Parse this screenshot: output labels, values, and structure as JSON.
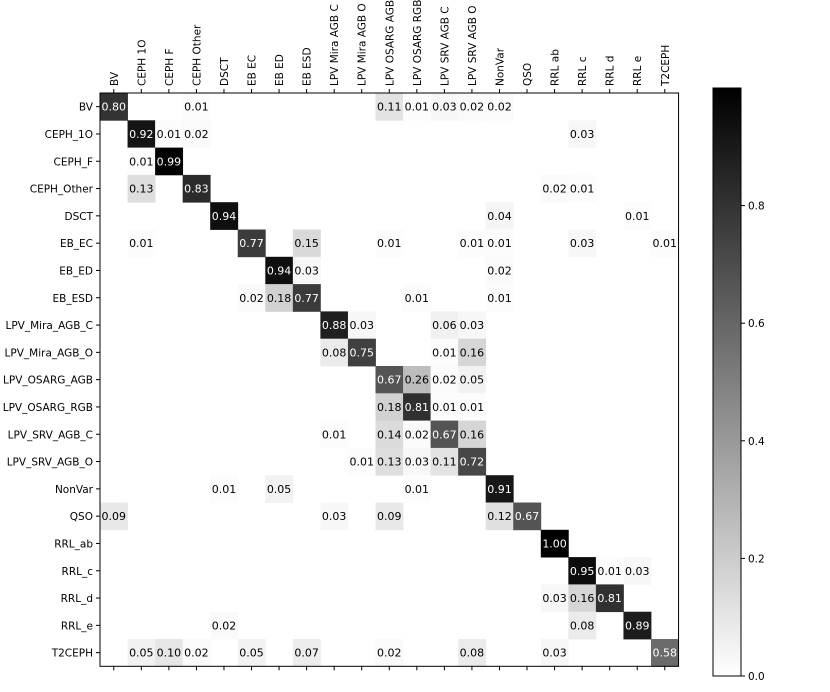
{
  "chart_data": {
    "type": "heatmap",
    "title": "",
    "xlabel": "",
    "ylabel": "",
    "x_tick_labels": [
      "BV",
      "CEPH 1O",
      "CEPH F",
      "CEPH Other",
      "DSCT",
      "EB EC",
      "EB ED",
      "EB ESD",
      "LPV Mira AGB C",
      "LPV Mira AGB O",
      "LPV OSARG AGB",
      "LPV OSARG RGB",
      "LPV SRV AGB C",
      "LPV SRV AGB O",
      "NonVar",
      "QSO",
      "RRL ab",
      "RRL c",
      "RRL d",
      "RRL e",
      "T2CEPH"
    ],
    "y_tick_labels": [
      "BV",
      "CEPH_1O",
      "CEPH_F",
      "CEPH_Other",
      "DSCT",
      "EB_EC",
      "EB_ED",
      "EB_ESD",
      "LPV_Mira_AGB_C",
      "LPV_Mira_AGB_O",
      "LPV_OSARG_AGB",
      "LPV_OSARG_RGB",
      "LPV_SRV_AGB_C",
      "LPV_SRV_AGB_O",
      "NonVar",
      "QSO",
      "RRL_ab",
      "RRL_c",
      "RRL_d",
      "RRL_e",
      "T2CEPH"
    ],
    "colormap": "Greys",
    "colorbar": {
      "range": [
        0.0,
        1.0
      ],
      "ticks": [
        "0.0",
        "0.2",
        "0.4",
        "0.6",
        "0.8"
      ]
    },
    "cells": [
      {
        "r": 0,
        "c": 0,
        "v": 0.8,
        "label": "0.80"
      },
      {
        "r": 0,
        "c": 3,
        "v": 0.01,
        "label": "0.01"
      },
      {
        "r": 0,
        "c": 10,
        "v": 0.11,
        "label": "0.11"
      },
      {
        "r": 0,
        "c": 11,
        "v": 0.01,
        "label": "0.01"
      },
      {
        "r": 0,
        "c": 12,
        "v": 0.03,
        "label": "0.03"
      },
      {
        "r": 0,
        "c": 13,
        "v": 0.02,
        "label": "0.02"
      },
      {
        "r": 0,
        "c": 14,
        "v": 0.02,
        "label": "0.02"
      },
      {
        "r": 1,
        "c": 1,
        "v": 0.92,
        "label": "0.92"
      },
      {
        "r": 1,
        "c": 2,
        "v": 0.01,
        "label": "0.01"
      },
      {
        "r": 1,
        "c": 3,
        "v": 0.02,
        "label": "0.02"
      },
      {
        "r": 1,
        "c": 17,
        "v": 0.03,
        "label": "0.03"
      },
      {
        "r": 2,
        "c": 1,
        "v": 0.01,
        "label": "0.01"
      },
      {
        "r": 2,
        "c": 2,
        "v": 0.99,
        "label": "0.99"
      },
      {
        "r": 3,
        "c": 1,
        "v": 0.13,
        "label": "0.13"
      },
      {
        "r": 3,
        "c": 3,
        "v": 0.83,
        "label": "0.83"
      },
      {
        "r": 3,
        "c": 16,
        "v": 0.02,
        "label": "0.02"
      },
      {
        "r": 3,
        "c": 17,
        "v": 0.01,
        "label": "0.01"
      },
      {
        "r": 4,
        "c": 4,
        "v": 0.94,
        "label": "0.94"
      },
      {
        "r": 4,
        "c": 14,
        "v": 0.04,
        "label": "0.04"
      },
      {
        "r": 4,
        "c": 19,
        "v": 0.01,
        "label": "0.01"
      },
      {
        "r": 5,
        "c": 1,
        "v": 0.01,
        "label": "0.01"
      },
      {
        "r": 5,
        "c": 5,
        "v": 0.77,
        "label": "0.77"
      },
      {
        "r": 5,
        "c": 7,
        "v": 0.15,
        "label": "0.15"
      },
      {
        "r": 5,
        "c": 10,
        "v": 0.01,
        "label": "0.01"
      },
      {
        "r": 5,
        "c": 13,
        "v": 0.01,
        "label": "0.01"
      },
      {
        "r": 5,
        "c": 14,
        "v": 0.01,
        "label": "0.01"
      },
      {
        "r": 5,
        "c": 17,
        "v": 0.03,
        "label": "0.03"
      },
      {
        "r": 5,
        "c": 20,
        "v": 0.01,
        "label": "0.01"
      },
      {
        "r": 6,
        "c": 6,
        "v": 0.94,
        "label": "0.94"
      },
      {
        "r": 6,
        "c": 7,
        "v": 0.03,
        "label": "0.03"
      },
      {
        "r": 6,
        "c": 14,
        "v": 0.02,
        "label": "0.02"
      },
      {
        "r": 7,
        "c": 5,
        "v": 0.02,
        "label": "0.02"
      },
      {
        "r": 7,
        "c": 6,
        "v": 0.18,
        "label": "0.18"
      },
      {
        "r": 7,
        "c": 7,
        "v": 0.77,
        "label": "0.77"
      },
      {
        "r": 7,
        "c": 11,
        "v": 0.01,
        "label": "0.01"
      },
      {
        "r": 7,
        "c": 14,
        "v": 0.01,
        "label": "0.01"
      },
      {
        "r": 8,
        "c": 8,
        "v": 0.88,
        "label": "0.88"
      },
      {
        "r": 8,
        "c": 9,
        "v": 0.03,
        "label": "0.03"
      },
      {
        "r": 8,
        "c": 12,
        "v": 0.06,
        "label": "0.06"
      },
      {
        "r": 8,
        "c": 13,
        "v": 0.03,
        "label": "0.03"
      },
      {
        "r": 9,
        "c": 8,
        "v": 0.08,
        "label": "0.08"
      },
      {
        "r": 9,
        "c": 9,
        "v": 0.75,
        "label": "0.75"
      },
      {
        "r": 9,
        "c": 12,
        "v": 0.01,
        "label": "0.01"
      },
      {
        "r": 9,
        "c": 13,
        "v": 0.16,
        "label": "0.16"
      },
      {
        "r": 10,
        "c": 10,
        "v": 0.67,
        "label": "0.67"
      },
      {
        "r": 10,
        "c": 11,
        "v": 0.26,
        "label": "0.26"
      },
      {
        "r": 10,
        "c": 12,
        "v": 0.02,
        "label": "0.02"
      },
      {
        "r": 10,
        "c": 13,
        "v": 0.05,
        "label": "0.05"
      },
      {
        "r": 11,
        "c": 10,
        "v": 0.18,
        "label": "0.18"
      },
      {
        "r": 11,
        "c": 11,
        "v": 0.81,
        "label": "0.81"
      },
      {
        "r": 11,
        "c": 12,
        "v": 0.01,
        "label": "0.01"
      },
      {
        "r": 11,
        "c": 13,
        "v": 0.01,
        "label": "0.01"
      },
      {
        "r": 12,
        "c": 8,
        "v": 0.01,
        "label": "0.01"
      },
      {
        "r": 12,
        "c": 10,
        "v": 0.14,
        "label": "0.14"
      },
      {
        "r": 12,
        "c": 11,
        "v": 0.02,
        "label": "0.02"
      },
      {
        "r": 12,
        "c": 12,
        "v": 0.67,
        "label": "0.67"
      },
      {
        "r": 12,
        "c": 13,
        "v": 0.16,
        "label": "0.16"
      },
      {
        "r": 13,
        "c": 9,
        "v": 0.01,
        "label": "0.01"
      },
      {
        "r": 13,
        "c": 10,
        "v": 0.13,
        "label": "0.13"
      },
      {
        "r": 13,
        "c": 11,
        "v": 0.03,
        "label": "0.03"
      },
      {
        "r": 13,
        "c": 12,
        "v": 0.11,
        "label": "0.11"
      },
      {
        "r": 13,
        "c": 13,
        "v": 0.72,
        "label": "0.72"
      },
      {
        "r": 14,
        "c": 4,
        "v": 0.01,
        "label": "0.01"
      },
      {
        "r": 14,
        "c": 6,
        "v": 0.05,
        "label": "0.05"
      },
      {
        "r": 14,
        "c": 11,
        "v": 0.01,
        "label": "0.01"
      },
      {
        "r": 14,
        "c": 14,
        "v": 0.91,
        "label": "0.91"
      },
      {
        "r": 15,
        "c": 0,
        "v": 0.09,
        "label": "0.09"
      },
      {
        "r": 15,
        "c": 8,
        "v": 0.03,
        "label": "0.03"
      },
      {
        "r": 15,
        "c": 10,
        "v": 0.09,
        "label": "0.09"
      },
      {
        "r": 15,
        "c": 14,
        "v": 0.12,
        "label": "0.12"
      },
      {
        "r": 15,
        "c": 15,
        "v": 0.67,
        "label": "0.67"
      },
      {
        "r": 16,
        "c": 16,
        "v": 1.0,
        "label": "1.00"
      },
      {
        "r": 17,
        "c": 17,
        "v": 0.95,
        "label": "0.95"
      },
      {
        "r": 17,
        "c": 18,
        "v": 0.01,
        "label": "0.01"
      },
      {
        "r": 17,
        "c": 19,
        "v": 0.03,
        "label": "0.03"
      },
      {
        "r": 18,
        "c": 16,
        "v": 0.03,
        "label": "0.03"
      },
      {
        "r": 18,
        "c": 17,
        "v": 0.16,
        "label": "0.16"
      },
      {
        "r": 18,
        "c": 18,
        "v": 0.81,
        "label": "0.81"
      },
      {
        "r": 19,
        "c": 4,
        "v": 0.02,
        "label": "0.02"
      },
      {
        "r": 19,
        "c": 17,
        "v": 0.08,
        "label": "0.08"
      },
      {
        "r": 19,
        "c": 19,
        "v": 0.89,
        "label": "0.89"
      },
      {
        "r": 20,
        "c": 1,
        "v": 0.05,
        "label": "0.05"
      },
      {
        "r": 20,
        "c": 2,
        "v": 0.1,
        "label": "0.10"
      },
      {
        "r": 20,
        "c": 3,
        "v": 0.02,
        "label": "0.02"
      },
      {
        "r": 20,
        "c": 5,
        "v": 0.05,
        "label": "0.05"
      },
      {
        "r": 20,
        "c": 7,
        "v": 0.07,
        "label": "0.07"
      },
      {
        "r": 20,
        "c": 10,
        "v": 0.02,
        "label": "0.02"
      },
      {
        "r": 20,
        "c": 13,
        "v": 0.08,
        "label": "0.08"
      },
      {
        "r": 20,
        "c": 16,
        "v": 0.03,
        "label": "0.03"
      },
      {
        "r": 20,
        "c": 20,
        "v": 0.58,
        "label": "0.58"
      }
    ]
  }
}
